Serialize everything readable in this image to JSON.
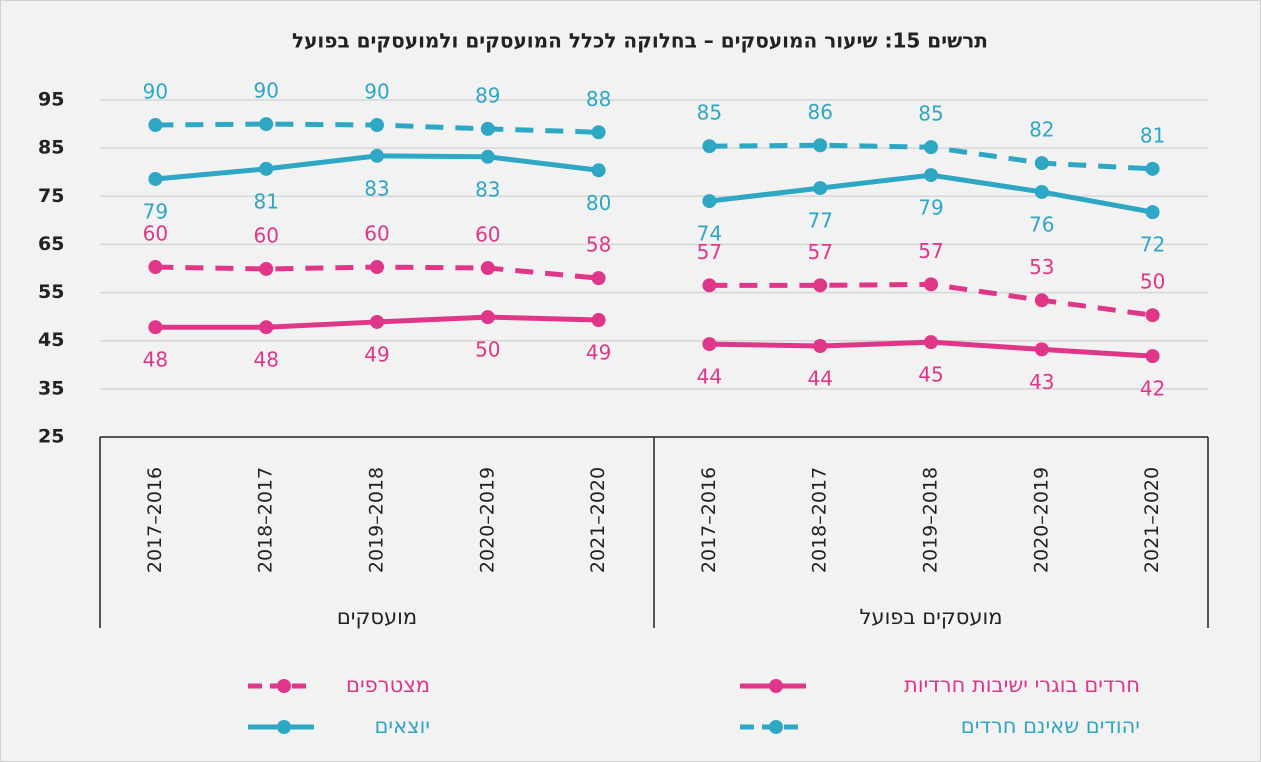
{
  "chart_data": {
    "type": "line",
    "title": "תרשים 15: שיעור המועסקים – בחלוקה לכלל המועסקים ולמועסקים בפועל",
    "categories": [
      "2017–2016",
      "2018–2017",
      "2019–2018",
      "2020–2019",
      "2021–2020",
      "2017–2016",
      "2018–2017",
      "2019–2018",
      "2020–2019",
      "2021–2020"
    ],
    "group_labels": [
      "מועסקים",
      "מועסקים בפועל"
    ],
    "ylim": [
      25,
      95
    ],
    "yticks": [
      25,
      35,
      45,
      55,
      65,
      75,
      85,
      95
    ],
    "grid": true,
    "series": [
      {
        "name": "חרדים בוגרי ישיבות חרדיות",
        "color": "#e0368a",
        "dashed": false,
        "values": [
          47.8,
          47.8,
          48.9,
          49.9,
          49.3,
          44.3,
          43.9,
          44.7,
          43.2,
          41.8
        ],
        "value_labels": [
          "48",
          "48",
          "49",
          "50",
          "49",
          "44",
          "44",
          "45",
          "43",
          "42"
        ]
      },
      {
        "name": "מצטרפים",
        "color": "#e0368a",
        "dashed": true,
        "values": [
          60.3,
          59.9,
          60.3,
          60.1,
          58.0,
          56.5,
          56.5,
          56.7,
          53.4,
          50.3
        ],
        "value_labels": [
          "60",
          "60",
          "60",
          "60",
          "58",
          "57",
          "57",
          "57",
          "53",
          "50"
        ]
      },
      {
        "name": "יוצאים",
        "color": "#2ea7c4",
        "dashed": false,
        "values": [
          78.6,
          80.7,
          83.4,
          83.2,
          80.4,
          74.0,
          76.7,
          79.4,
          75.9,
          71.7
        ],
        "value_labels": [
          "79",
          "81",
          "83",
          "83",
          "80",
          "74",
          "77",
          "79",
          "76",
          "72"
        ]
      },
      {
        "name": "יהודים שאינם חרדים",
        "color": "#2ea7c4",
        "dashed": true,
        "values": [
          89.8,
          90.0,
          89.8,
          89.0,
          88.3,
          85.4,
          85.6,
          85.2,
          81.9,
          80.7
        ],
        "value_labels": [
          "90",
          "90",
          "90",
          "89",
          "88",
          "85",
          "86",
          "85",
          "82",
          "81"
        ]
      }
    ]
  }
}
